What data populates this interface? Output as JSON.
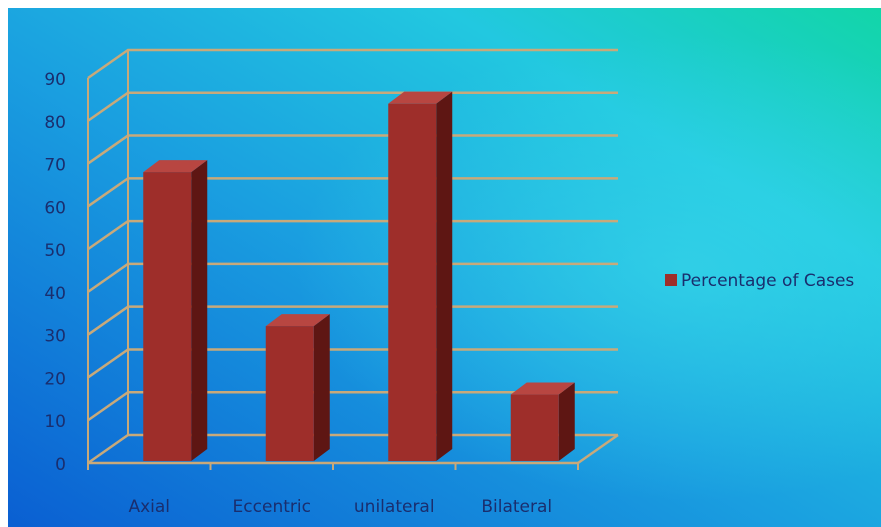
{
  "chart_data": {
    "type": "bar",
    "categories": [
      "Axial",
      "Eccentric",
      "unilateral",
      "Bilateral"
    ],
    "series": [
      {
        "name": "Percentage of Cases",
        "values": [
          68,
          32,
          84,
          16
        ]
      }
    ],
    "title": "",
    "xlabel": "",
    "ylabel": "",
    "ylim": [
      0,
      90
    ],
    "yticks": [
      0,
      10,
      20,
      30,
      40,
      50,
      60,
      70,
      80,
      90
    ],
    "grid": true,
    "three_d": true,
    "legend_position": "right",
    "colors": {
      "bar_front": "#9e2e2a",
      "bar_side": "#5e1613",
      "bar_top": "#b84641",
      "grid": "#c8a97a",
      "text": "#1a2e6e",
      "background_start": "#0b6fd8",
      "background_end": "#12d8b0"
    }
  }
}
